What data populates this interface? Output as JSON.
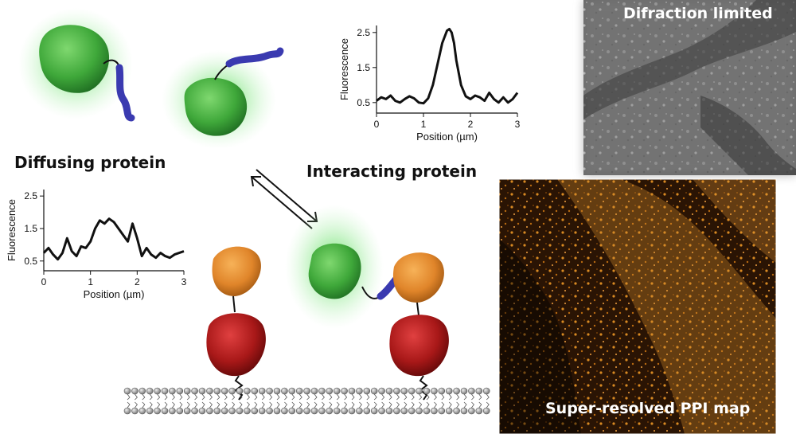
{
  "labels": {
    "diffusing": "Diffusing protein",
    "interacting": "Interacting protein"
  },
  "panels": {
    "top": "Difraction limited",
    "bottom": "Super-resolved PPI map"
  },
  "colors": {
    "green_glow": "#7de27d",
    "green_protein": "#3aa83a",
    "blue_linker": "#3a3ab0",
    "orange_protein": "#e08a2a",
    "red_protein": "#a81818",
    "micrograph_gray": "#8a8a8a",
    "micrograph_orange": "#c27a18"
  },
  "chart_data": [
    {
      "type": "line",
      "id": "interacting_profile",
      "xlabel": "Position (µm)",
      "ylabel": "Fluorescence",
      "xticks": [
        0,
        1,
        2,
        3
      ],
      "yticks": [
        0.5,
        1.5,
        2.5
      ],
      "xlim": [
        0,
        3
      ],
      "ylim": [
        0.2,
        2.7
      ],
      "x": [
        0,
        0.1,
        0.2,
        0.3,
        0.4,
        0.5,
        0.6,
        0.7,
        0.8,
        0.9,
        1.0,
        1.1,
        1.2,
        1.3,
        1.4,
        1.5,
        1.55,
        1.6,
        1.65,
        1.7,
        1.8,
        1.9,
        2.0,
        2.1,
        2.2,
        2.3,
        2.4,
        2.5,
        2.6,
        2.7,
        2.8,
        2.9,
        3.0
      ],
      "y": [
        0.55,
        0.65,
        0.6,
        0.7,
        0.55,
        0.5,
        0.6,
        0.68,
        0.62,
        0.5,
        0.48,
        0.62,
        1.0,
        1.6,
        2.2,
        2.55,
        2.6,
        2.5,
        2.2,
        1.7,
        1.0,
        0.68,
        0.6,
        0.7,
        0.65,
        0.55,
        0.78,
        0.6,
        0.5,
        0.65,
        0.5,
        0.6,
        0.78
      ]
    },
    {
      "type": "line",
      "id": "diffusing_profile",
      "xlabel": "Position (µm)",
      "ylabel": "Fluorescence",
      "xticks": [
        0,
        1,
        2,
        3
      ],
      "yticks": [
        0.5,
        1.5,
        2.5
      ],
      "xlim": [
        0,
        3
      ],
      "ylim": [
        0.2,
        2.7
      ],
      "x": [
        0,
        0.1,
        0.2,
        0.3,
        0.4,
        0.5,
        0.6,
        0.7,
        0.8,
        0.9,
        1.0,
        1.1,
        1.2,
        1.3,
        1.4,
        1.5,
        1.6,
        1.7,
        1.8,
        1.9,
        2.0,
        2.1,
        2.2,
        2.3,
        2.4,
        2.5,
        2.6,
        2.7,
        2.8,
        2.9,
        3.0
      ],
      "y": [
        0.75,
        0.9,
        0.7,
        0.55,
        0.75,
        1.2,
        0.8,
        0.65,
        0.95,
        0.9,
        1.1,
        1.5,
        1.75,
        1.65,
        1.8,
        1.7,
        1.5,
        1.3,
        1.1,
        1.65,
        1.2,
        0.65,
        0.9,
        0.7,
        0.6,
        0.75,
        0.65,
        0.6,
        0.7,
        0.75,
        0.8
      ]
    }
  ]
}
